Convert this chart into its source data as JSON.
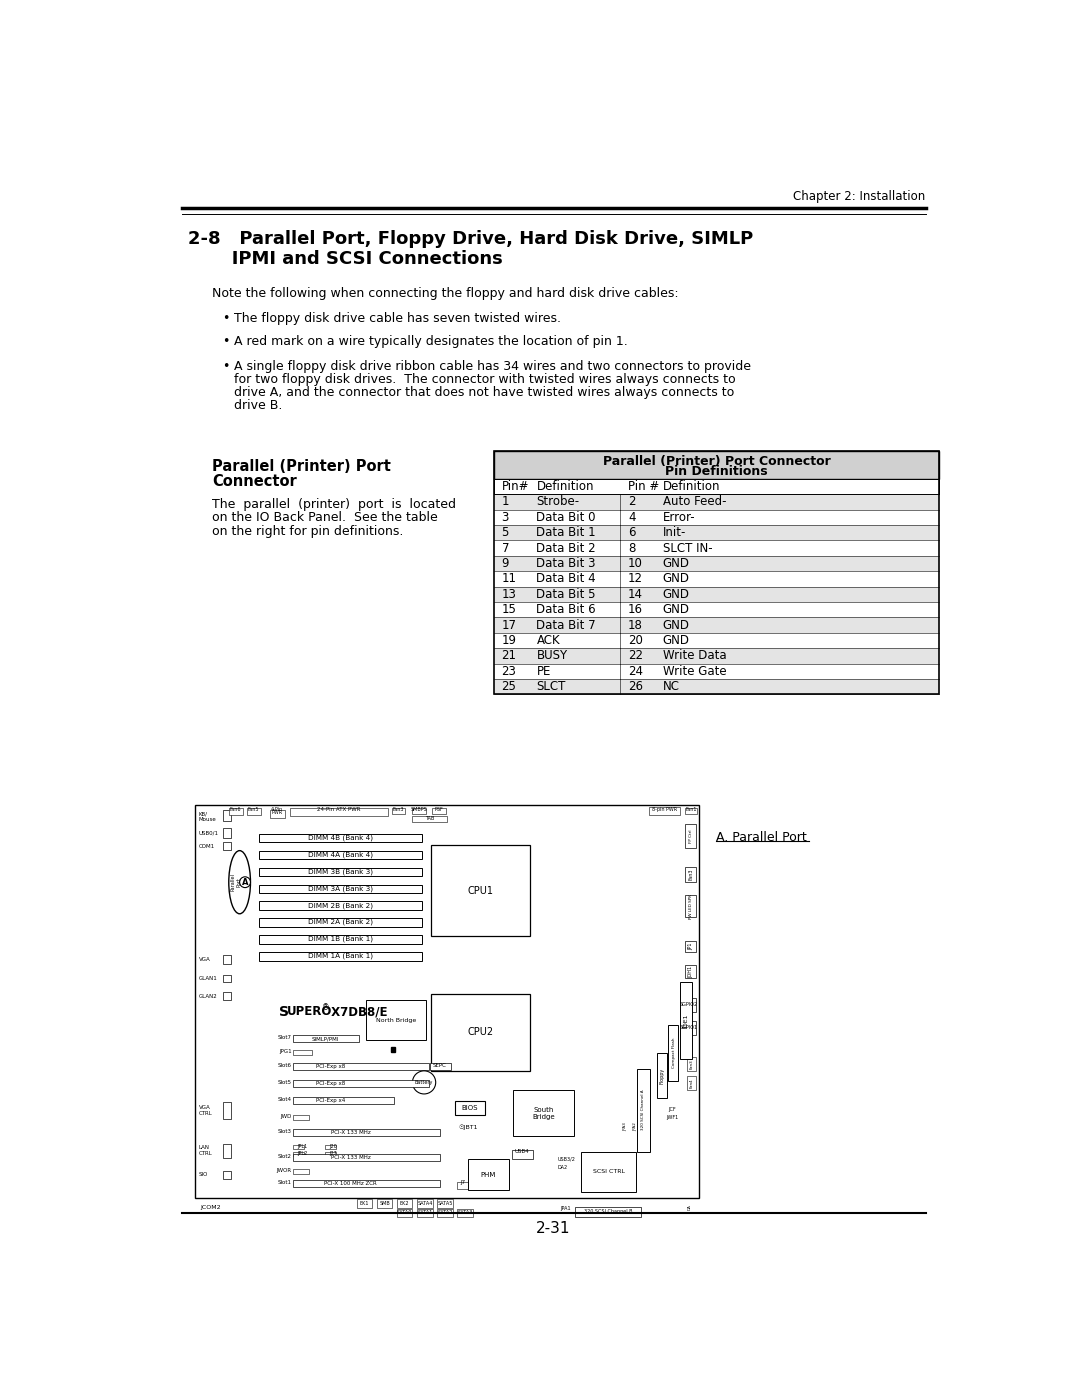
{
  "page_header": "Chapter 2: Installation",
  "section_title_line1": "2-8   Parallel Port, Floppy Drive, Hard Disk Drive, SIMLP",
  "section_title_line2": "       IPMI and SCSI Connections",
  "body_text": "Note the following when connecting the floppy and hard disk drive cables:",
  "bullet1": "The floppy disk drive cable has seven twisted wires.",
  "bullet2": "A red mark on a wire typically designates the location of pin 1.",
  "bullet3_lines": [
    "A single floppy disk drive ribbon cable has 34 wires and two connectors to provide",
    "for two floppy disk drives.  The connector with twisted wires always connects to",
    "drive A, and the connector that does not have twisted wires always connects to",
    "drive B."
  ],
  "left_title1": "Parallel (Printer) Port",
  "left_title2": "Connector",
  "left_body_lines": [
    "The  parallel  (printer)  port  is  located",
    "on the IO Back Panel.  See the table",
    "on the right for pin definitions."
  ],
  "table_header1": "Parallel (Printer) Port Connector",
  "table_header2": "Pin Definitions",
  "table_col_headers": [
    "Pin#",
    "Definition",
    "Pin #",
    "Definition"
  ],
  "table_rows": [
    [
      "1",
      "Strobe-",
      "2",
      "Auto Feed-"
    ],
    [
      "3",
      "Data Bit 0",
      "4",
      "Error-"
    ],
    [
      "5",
      "Data Bit 1",
      "6",
      "Init-"
    ],
    [
      "7",
      "Data Bit 2",
      "8",
      "SLCT IN-"
    ],
    [
      "9",
      "Data Bit 3",
      "10",
      "GND"
    ],
    [
      "11",
      "Data Bit 4",
      "12",
      "GND"
    ],
    [
      "13",
      "Data Bit 5",
      "14",
      "GND"
    ],
    [
      "15",
      "Data Bit 6",
      "16",
      "GND"
    ],
    [
      "17",
      "Data Bit 7",
      "18",
      "GND"
    ],
    [
      "19",
      "ACK",
      "20",
      "GND"
    ],
    [
      "21",
      "BUSY",
      "22",
      "Write Data"
    ],
    [
      "23",
      "PE",
      "24",
      "Write Gate"
    ],
    [
      "25",
      "SLCT",
      "26",
      "NC"
    ]
  ],
  "parallel_port_label": "A. Parallel Port",
  "page_number": "2-31",
  "bg_color": "#ffffff",
  "text_color": "#000000",
  "table_header_bg": "#d0d0d0",
  "table_shaded_bg": "#e4e4e4",
  "dimm_labels": [
    "DIMM 4B (Bank 4)",
    "DIMM 4A (Bank 4)",
    "DIMM 3B (Bank 3)",
    "DIMM 3A (Bank 3)",
    "DIMM 2B (Bank 2)",
    "DIMM 2A (Bank 2)",
    "DIMM 1B (Bank 1)",
    "DIMM 1A (Bank 1)"
  ]
}
